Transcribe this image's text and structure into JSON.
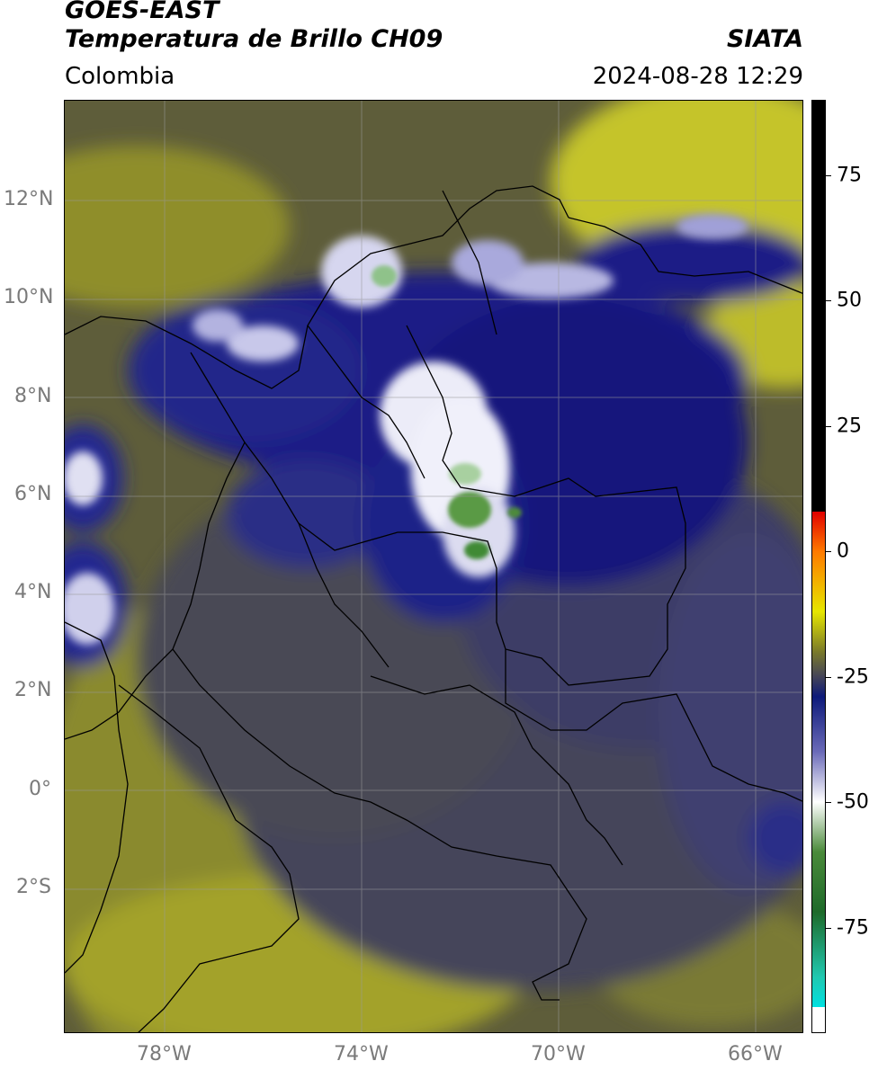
{
  "header": {
    "line1": "GOES-EAST",
    "line2": "Temperatura de Brillo CH09",
    "brand": "SIATA",
    "region": "Colombia",
    "timestamp": "2024-08-28 12:29"
  },
  "map": {
    "lat_labels": [
      "12°N",
      "10°N",
      "8°N",
      "6°N",
      "4°N",
      "2°N",
      "0°",
      "2°S"
    ],
    "lon_labels": [
      "78°W",
      "74°W",
      "70°W",
      "66°W"
    ],
    "colors": {
      "background_olive": "#6f6d2c",
      "dry_yellow": "#b7b62a",
      "slate": "#45455a",
      "navy": "#1b1f86",
      "cloud_white": "#e8e8f5",
      "cloud_green": "#4d8a3a",
      "border": "#000000",
      "grid": "#9a9a9a"
    }
  },
  "colorbar": {
    "tick_labels": [
      "75",
      "50",
      "25",
      "0",
      "-25",
      "-50",
      "-75"
    ],
    "stops": [
      {
        "value": 90,
        "color": "#000000"
      },
      {
        "value": 8,
        "color": "#000000"
      },
      {
        "value": 8,
        "color": "#e00000"
      },
      {
        "value": 0,
        "color": "#ff7a00"
      },
      {
        "value": -12,
        "color": "#e6e600"
      },
      {
        "value": -20,
        "color": "#7a7a2a"
      },
      {
        "value": -25,
        "color": "#444458"
      },
      {
        "value": -29,
        "color": "#0d1a7a"
      },
      {
        "value": -40,
        "color": "#6a6ab8"
      },
      {
        "value": -50,
        "color": "#ffffff"
      },
      {
        "value": -60,
        "color": "#4a8a3a"
      },
      {
        "value": -72,
        "color": "#1e6a2a"
      },
      {
        "value": -85,
        "color": "#20c8b0"
      },
      {
        "value": -91,
        "color": "#00e0e0"
      },
      {
        "value": -91,
        "color": "#ffffff"
      },
      {
        "value": -96,
        "color": "#ffffff"
      }
    ],
    "range": [
      -96,
      90
    ]
  }
}
